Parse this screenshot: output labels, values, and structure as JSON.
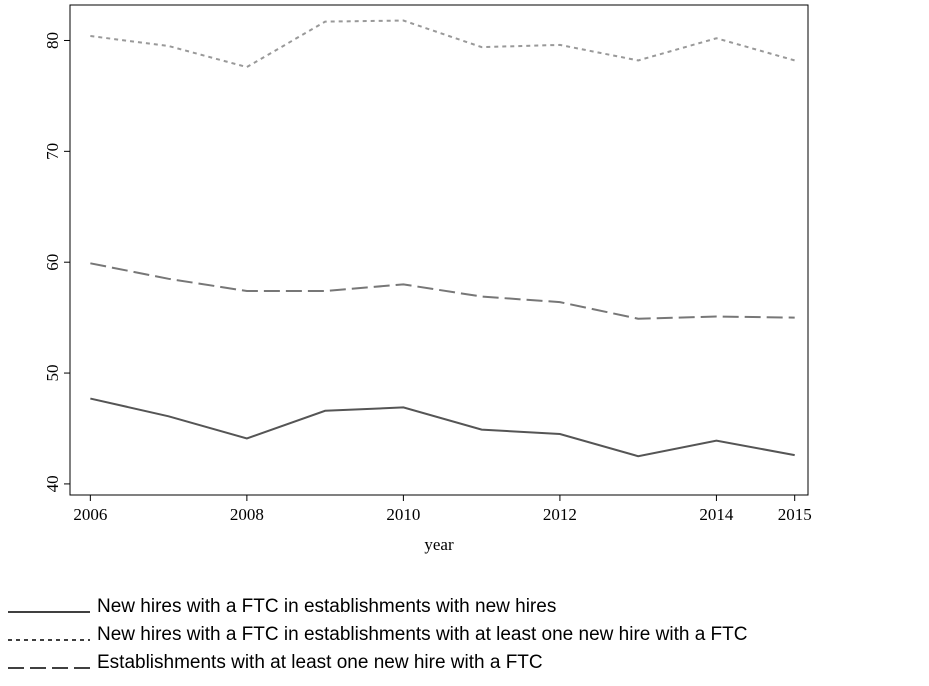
{
  "chart_data": {
    "type": "line",
    "x": [
      2006,
      2007,
      2008,
      2009,
      2010,
      2011,
      2012,
      2013,
      2014,
      2015
    ],
    "x_label": "year",
    "series": [
      {
        "name": "New hires with a FTC in establishments with new hires",
        "color": "#555555",
        "linestyle": "solid",
        "values": [
          47.7,
          46.1,
          44.1,
          46.6,
          46.9,
          44.9,
          44.5,
          42.5,
          43.9,
          42.6
        ]
      },
      {
        "name": "New hires with a FTC in establishments with at least one new hire with a FTC",
        "color": "#999999",
        "linestyle": "dotted",
        "values": [
          80.4,
          79.5,
          77.6,
          81.7,
          81.8,
          79.4,
          79.6,
          78.2,
          80.2,
          78.2
        ]
      },
      {
        "name": "Establishments with at least one new hire with a FTC",
        "color": "#777777",
        "linestyle": "dashed",
        "values": [
          59.9,
          58.5,
          57.4,
          57.4,
          58.0,
          56.9,
          56.4,
          54.9,
          55.1,
          55.0
        ]
      }
    ],
    "xlim": [
      2005.74,
      2015.17
    ],
    "xticks": [
      2006,
      2008,
      2010,
      2012,
      2014,
      2015
    ],
    "ylim": [
      39,
      83.2
    ],
    "yticks": [
      40,
      50,
      60,
      70,
      80
    ],
    "grid": false
  }
}
